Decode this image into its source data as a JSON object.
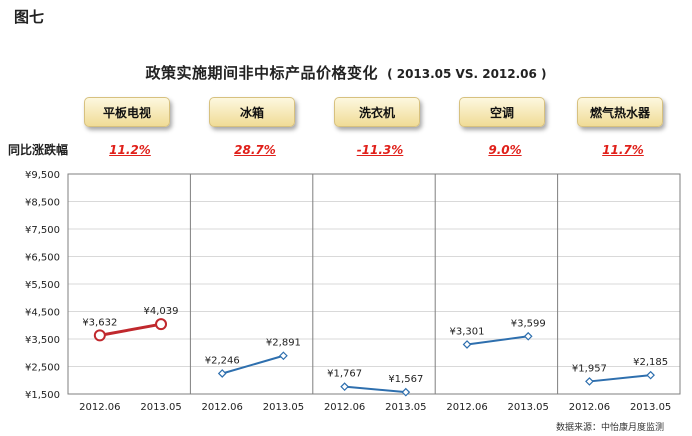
{
  "figure_label": "图七",
  "yoy_label": "同比涨跌幅",
  "source_note": "数据来源：中怡康月度监测",
  "colors": {
    "panel1_line": "#c0282d",
    "line": "#2e6fae",
    "marker_fill": "#ffffff",
    "grid": "#d9d9d9",
    "axis": "#7f7f7f"
  },
  "chart_data": {
    "type": "line",
    "title": "政策实施期间非中标产品价格变化",
    "subtitle": "( 2013.05 VS. 2012.06 )",
    "ylim": [
      1500,
      9500
    ],
    "yticks": [
      "¥1,500",
      "¥2,500",
      "¥3,500",
      "¥4,500",
      "¥5,500",
      "¥6,500",
      "¥7,500",
      "¥8,500",
      "¥9,500"
    ],
    "ytick_values": [
      1500,
      2500,
      3500,
      4500,
      5500,
      6500,
      7500,
      8500,
      9500
    ],
    "grid": true,
    "panels": [
      {
        "category": "平板电视",
        "change": "11.2%",
        "x": [
          "2012.06",
          "2013.05"
        ],
        "values": [
          3632,
          4039
        ],
        "labels": [
          "¥3,632",
          "¥4,039"
        ]
      },
      {
        "category": "冰箱",
        "change": "28.7%",
        "x": [
          "2012.06",
          "2013.05"
        ],
        "values": [
          2246,
          2891
        ],
        "labels": [
          "¥2,246",
          "¥2,891"
        ]
      },
      {
        "category": "洗衣机",
        "change": "-11.3%",
        "x": [
          "2012.06",
          "2013.05"
        ],
        "values": [
          1767,
          1567
        ],
        "labels": [
          "¥1,767",
          "¥1,567"
        ]
      },
      {
        "category": "空调",
        "change": "9.0%",
        "x": [
          "2012.06",
          "2013.05"
        ],
        "values": [
          3301,
          3599
        ],
        "labels": [
          "¥3,301",
          "¥3,599"
        ]
      },
      {
        "category": "燃气热水器",
        "change": "11.7%",
        "x": [
          "2012.06",
          "2013.05"
        ],
        "values": [
          1957,
          2185
        ],
        "labels": [
          "¥1,957",
          "¥2,185"
        ]
      }
    ]
  }
}
